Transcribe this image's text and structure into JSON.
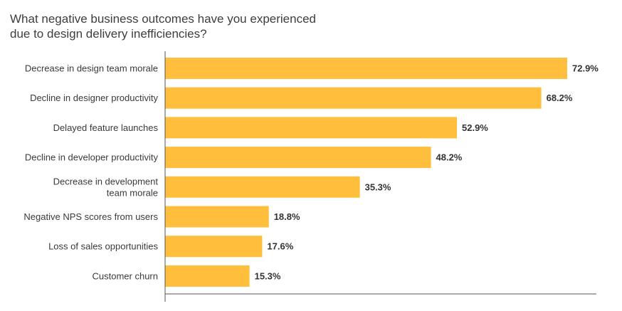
{
  "chart_data": {
    "type": "bar",
    "orientation": "horizontal",
    "title_lines": [
      "What negative business outcomes have you experienced",
      "due to design delivery inefficiencies?"
    ],
    "categories": [
      [
        "Decrease in design team morale"
      ],
      [
        "Decline in designer productivity"
      ],
      [
        "Delayed feature launches"
      ],
      [
        "Decline in developer productivity"
      ],
      [
        "Decrease in development",
        "team morale"
      ],
      [
        "Negative NPS scores from users"
      ],
      [
        "Loss of sales opportunities"
      ],
      [
        "Customer churn"
      ]
    ],
    "values": [
      72.9,
      68.2,
      52.9,
      48.2,
      35.3,
      18.8,
      17.6,
      15.3
    ],
    "value_labels": [
      "72.9%",
      "68.2%",
      "52.9%",
      "48.2%",
      "35.3%",
      "18.8%",
      "17.6%",
      "15.3%"
    ],
    "xlim": [
      0,
      100
    ],
    "grid": false,
    "legend": "none",
    "bar_color": "#FFBE3C",
    "axis_color": "#555555"
  }
}
